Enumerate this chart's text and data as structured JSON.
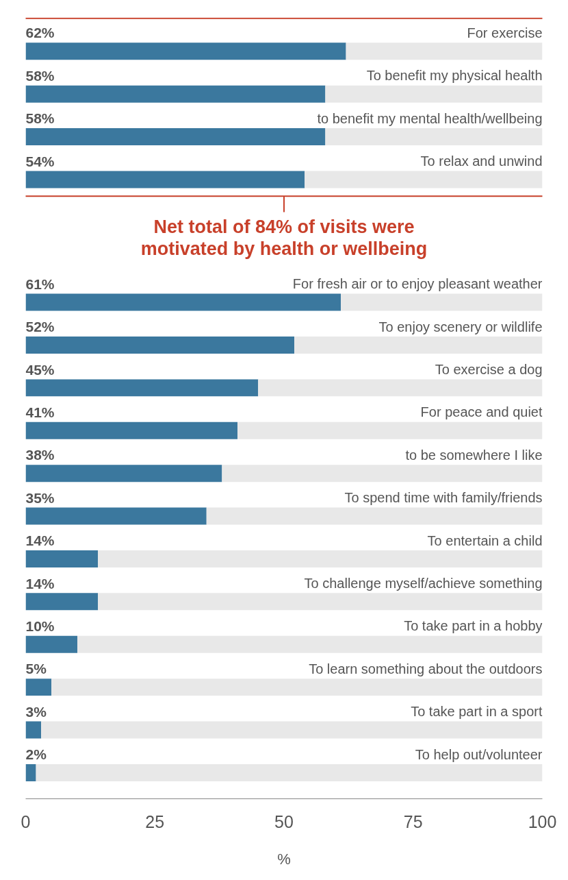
{
  "chart_data": {
    "type": "bar",
    "orientation": "horizontal",
    "stacked": true,
    "categories": [
      "For exercise",
      "To benefit my physical health",
      "to benefit my mental health/wellbeing",
      "To relax and unwind",
      "For fresh air or to enjoy pleasant weather",
      "To enjoy scenery or wildlife",
      "To exercise a dog",
      "For peace and quiet",
      "to be somewhere I like",
      "To spend time with family/friends",
      "To entertain a child",
      "To challenge myself/achieve something",
      "To take part in a hobby",
      "To learn something about the outdoors",
      "To take part in a sport",
      "To help out/volunteer"
    ],
    "series": [
      {
        "color": "#3b789e",
        "values": [
          62,
          58,
          58,
          54,
          61,
          52,
          45,
          41,
          38,
          35,
          14,
          14,
          10,
          5,
          3,
          2
        ],
        "value_labels": [
          "62%",
          "58%",
          "58%",
          "54%",
          "61%",
          "52%",
          "45%",
          "41%",
          "38%",
          "35%",
          "14%",
          "14%",
          "10%",
          "5%",
          "3%",
          "2%"
        ]
      },
      {
        "color": "#e8e8e8",
        "values": [
          38,
          42,
          42,
          46,
          39,
          48,
          55,
          59,
          62,
          65,
          86,
          86,
          90,
          95,
          97,
          98
        ]
      }
    ],
    "xlim": [
      0,
      100
    ],
    "xticks": [
      0,
      25,
      50,
      75,
      100
    ],
    "xlabel": "%",
    "grid": false,
    "annotations": [
      "Net total of 84% of visits were motivated by health or wellbeing"
    ]
  }
}
